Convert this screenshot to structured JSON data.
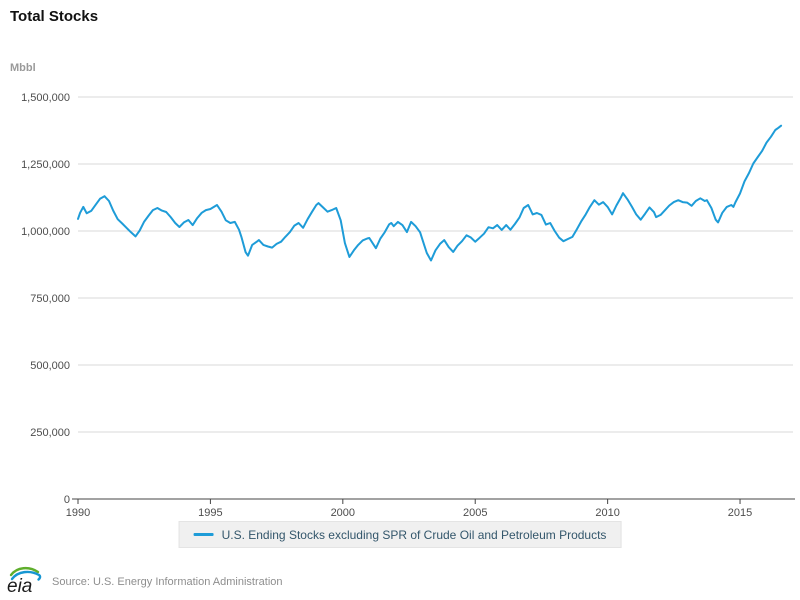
{
  "header": {
    "title": "Total Stocks"
  },
  "axes": {
    "unit_label": "Mbbl"
  },
  "legend": {
    "label": "U.S. Ending Stocks excluding SPR of Crude Oil and Petroleum Products"
  },
  "footer": {
    "logo_text": "eia",
    "source": "Source: U.S. Energy Information Administration"
  },
  "colors": {
    "line": "#1e9cd8",
    "grid": "#d9d9d9",
    "axis": "#444444",
    "tick_label": "#4d4d4d",
    "legend_bg": "#f0f0f0",
    "legend_text": "#33566b",
    "logo_green": "#5fae2c",
    "logo_blue": "#1696d2"
  },
  "chart_data": {
    "type": "line",
    "title": "Total Stocks",
    "xlabel": "",
    "ylabel": "Mbbl",
    "xlim": [
      1990,
      2017
    ],
    "ylim": [
      0,
      1500000
    ],
    "grid": "horizontal",
    "legend_position": "bottom",
    "y_ticks": [
      {
        "value": 0,
        "label": "0"
      },
      {
        "value": 250000,
        "label": "250,000"
      },
      {
        "value": 500000,
        "label": "500,000"
      },
      {
        "value": 750000,
        "label": "750,000"
      },
      {
        "value": 1000000,
        "label": "1,000,000"
      },
      {
        "value": 1250000,
        "label": "1,250,000"
      },
      {
        "value": 1500000,
        "label": "1,500,000"
      }
    ],
    "x_ticks": [
      {
        "value": 1990,
        "label": "1990"
      },
      {
        "value": 1995,
        "label": "1995"
      },
      {
        "value": 2000,
        "label": "2000"
      },
      {
        "value": 2005,
        "label": "2005"
      },
      {
        "value": 2010,
        "label": "2010"
      },
      {
        "value": 2015,
        "label": "2015"
      }
    ],
    "series": [
      {
        "name": "U.S. Ending Stocks excluding SPR of Crude Oil and Petroleum Products",
        "color": "#1e9cd8",
        "points": [
          [
            1990.0,
            1045000
          ],
          [
            1990.08,
            1068000
          ],
          [
            1990.2,
            1090000
          ],
          [
            1990.33,
            1066000
          ],
          [
            1990.5,
            1075000
          ],
          [
            1990.67,
            1098000
          ],
          [
            1990.83,
            1120000
          ],
          [
            1991.0,
            1130000
          ],
          [
            1991.17,
            1112000
          ],
          [
            1991.33,
            1076000
          ],
          [
            1991.5,
            1044000
          ],
          [
            1991.67,
            1028000
          ],
          [
            1991.83,
            1012000
          ],
          [
            1992.0,
            995000
          ],
          [
            1992.17,
            980000
          ],
          [
            1992.33,
            1002000
          ],
          [
            1992.5,
            1035000
          ],
          [
            1992.67,
            1058000
          ],
          [
            1992.83,
            1078000
          ],
          [
            1993.0,
            1086000
          ],
          [
            1993.17,
            1076000
          ],
          [
            1993.33,
            1071000
          ],
          [
            1993.5,
            1052000
          ],
          [
            1993.67,
            1030000
          ],
          [
            1993.83,
            1015000
          ],
          [
            1994.0,
            1032000
          ],
          [
            1994.17,
            1041000
          ],
          [
            1994.33,
            1022000
          ],
          [
            1994.5,
            1048000
          ],
          [
            1994.67,
            1068000
          ],
          [
            1994.83,
            1078000
          ],
          [
            1995.0,
            1082000
          ],
          [
            1995.25,
            1097000
          ],
          [
            1995.42,
            1072000
          ],
          [
            1995.58,
            1040000
          ],
          [
            1995.75,
            1030000
          ],
          [
            1995.92,
            1034000
          ],
          [
            1996.08,
            1005000
          ],
          [
            1996.17,
            978000
          ],
          [
            1996.33,
            921000
          ],
          [
            1996.42,
            908000
          ],
          [
            1996.58,
            948000
          ],
          [
            1996.75,
            960000
          ],
          [
            1996.83,
            966000
          ],
          [
            1997.0,
            948000
          ],
          [
            1997.17,
            942000
          ],
          [
            1997.33,
            938000
          ],
          [
            1997.5,
            952000
          ],
          [
            1997.67,
            960000
          ],
          [
            1997.83,
            978000
          ],
          [
            1998.0,
            996000
          ],
          [
            1998.17,
            1020000
          ],
          [
            1998.33,
            1030000
          ],
          [
            1998.5,
            1012000
          ],
          [
            1998.67,
            1044000
          ],
          [
            1998.83,
            1070000
          ],
          [
            1999.0,
            1097000
          ],
          [
            1999.08,
            1104000
          ],
          [
            1999.25,
            1088000
          ],
          [
            1999.42,
            1072000
          ],
          [
            1999.58,
            1078000
          ],
          [
            1999.75,
            1086000
          ],
          [
            1999.92,
            1040000
          ],
          [
            2000.08,
            955000
          ],
          [
            2000.25,
            903000
          ],
          [
            2000.42,
            928000
          ],
          [
            2000.58,
            948000
          ],
          [
            2000.75,
            965000
          ],
          [
            2000.92,
            972000
          ],
          [
            2001.0,
            974000
          ],
          [
            2001.17,
            948000
          ],
          [
            2001.25,
            936000
          ],
          [
            2001.42,
            972000
          ],
          [
            2001.58,
            995000
          ],
          [
            2001.75,
            1025000
          ],
          [
            2001.83,
            1030000
          ],
          [
            2001.92,
            1018000
          ],
          [
            2002.08,
            1034000
          ],
          [
            2002.25,
            1022000
          ],
          [
            2002.42,
            996000
          ],
          [
            2002.58,
            1034000
          ],
          [
            2002.75,
            1018000
          ],
          [
            2002.92,
            995000
          ],
          [
            2003.08,
            945000
          ],
          [
            2003.17,
            918000
          ],
          [
            2003.33,
            890000
          ],
          [
            2003.5,
            928000
          ],
          [
            2003.67,
            952000
          ],
          [
            2003.83,
            966000
          ],
          [
            2004.0,
            940000
          ],
          [
            2004.17,
            922000
          ],
          [
            2004.33,
            945000
          ],
          [
            2004.5,
            962000
          ],
          [
            2004.67,
            984000
          ],
          [
            2004.83,
            976000
          ],
          [
            2005.0,
            960000
          ],
          [
            2005.17,
            975000
          ],
          [
            2005.33,
            990000
          ],
          [
            2005.5,
            1014000
          ],
          [
            2005.67,
            1010000
          ],
          [
            2005.83,
            1022000
          ],
          [
            2006.0,
            1004000
          ],
          [
            2006.17,
            1022000
          ],
          [
            2006.33,
            1005000
          ],
          [
            2006.5,
            1026000
          ],
          [
            2006.67,
            1050000
          ],
          [
            2006.83,
            1086000
          ],
          [
            2007.0,
            1097000
          ],
          [
            2007.17,
            1062000
          ],
          [
            2007.33,
            1067000
          ],
          [
            2007.5,
            1060000
          ],
          [
            2007.67,
            1024000
          ],
          [
            2007.83,
            1030000
          ],
          [
            2008.0,
            1000000
          ],
          [
            2008.17,
            975000
          ],
          [
            2008.33,
            962000
          ],
          [
            2008.5,
            970000
          ],
          [
            2008.67,
            978000
          ],
          [
            2008.83,
            1005000
          ],
          [
            2009.0,
            1035000
          ],
          [
            2009.17,
            1062000
          ],
          [
            2009.33,
            1090000
          ],
          [
            2009.5,
            1115000
          ],
          [
            2009.67,
            1098000
          ],
          [
            2009.83,
            1108000
          ],
          [
            2010.0,
            1090000
          ],
          [
            2010.17,
            1062000
          ],
          [
            2010.33,
            1095000
          ],
          [
            2010.5,
            1125000
          ],
          [
            2010.58,
            1141000
          ],
          [
            2010.75,
            1118000
          ],
          [
            2010.92,
            1090000
          ],
          [
            2011.08,
            1062000
          ],
          [
            2011.25,
            1042000
          ],
          [
            2011.42,
            1065000
          ],
          [
            2011.58,
            1088000
          ],
          [
            2011.75,
            1070000
          ],
          [
            2011.83,
            1052000
          ],
          [
            2012.0,
            1060000
          ],
          [
            2012.17,
            1078000
          ],
          [
            2012.33,
            1095000
          ],
          [
            2012.5,
            1108000
          ],
          [
            2012.67,
            1115000
          ],
          [
            2012.83,
            1108000
          ],
          [
            2013.0,
            1106000
          ],
          [
            2013.17,
            1094000
          ],
          [
            2013.33,
            1112000
          ],
          [
            2013.5,
            1122000
          ],
          [
            2013.67,
            1112000
          ],
          [
            2013.75,
            1115000
          ],
          [
            2013.92,
            1086000
          ],
          [
            2014.08,
            1042000
          ],
          [
            2014.17,
            1032000
          ],
          [
            2014.33,
            1068000
          ],
          [
            2014.5,
            1090000
          ],
          [
            2014.67,
            1097000
          ],
          [
            2014.75,
            1090000
          ],
          [
            2014.83,
            1108000
          ],
          [
            2015.0,
            1140000
          ],
          [
            2015.17,
            1185000
          ],
          [
            2015.33,
            1215000
          ],
          [
            2015.5,
            1252000
          ],
          [
            2015.67,
            1276000
          ],
          [
            2015.83,
            1298000
          ],
          [
            2016.0,
            1330000
          ],
          [
            2016.17,
            1352000
          ],
          [
            2016.33,
            1377000
          ],
          [
            2016.45,
            1385000
          ],
          [
            2016.55,
            1393000
          ]
        ]
      }
    ]
  }
}
